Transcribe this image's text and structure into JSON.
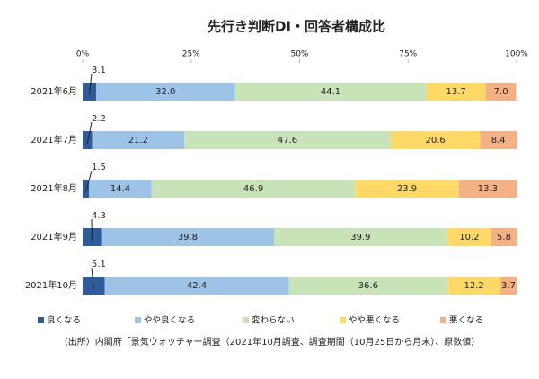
{
  "chart_data": {
    "type": "stacked-bar-horizontal",
    "title": "先行き判断DI・回答者構成比",
    "categories": [
      "2021年6月",
      "2021年7月",
      "2021年8月",
      "2021年9月",
      "2021年10月"
    ],
    "series": [
      {
        "name": "良くなる",
        "color": "#2e5c9a",
        "values": [
          3.1,
          2.2,
          1.5,
          4.3,
          5.1
        ]
      },
      {
        "name": "やや良くなる",
        "color": "#9dc3e6",
        "values": [
          32.0,
          21.2,
          14.4,
          39.8,
          42.4
        ],
        "value_labels": [
          "32.0",
          "21.2",
          "14.4",
          "39.8",
          "42.4"
        ]
      },
      {
        "name": "変わらない",
        "color": "#c9e3b8",
        "values": [
          44.1,
          47.6,
          46.9,
          39.9,
          36.6
        ]
      },
      {
        "name": "やや悪くなる",
        "color": "#ffd966",
        "values": [
          13.7,
          20.6,
          23.9,
          10.2,
          12.2
        ]
      },
      {
        "name": "悪くなる",
        "color": "#f4b183",
        "values": [
          7.0,
          8.4,
          13.3,
          5.8,
          3.7
        ],
        "value_labels": [
          "7.0",
          "8.4",
          "13.3",
          "5.8",
          "3.7"
        ]
      }
    ],
    "xlim": [
      0,
      100
    ],
    "xticks": [
      {
        "value": 0,
        "label": "0%"
      },
      {
        "value": 25,
        "label": "25%"
      },
      {
        "value": 50,
        "label": "50%"
      },
      {
        "value": 75,
        "label": "75%"
      },
      {
        "value": 100,
        "label": "100%"
      }
    ],
    "note": "（出所）内閣府「景気ウォッチャー調査（2021年10月調査、調査期間（10月25日から月末）、原数値）"
  }
}
